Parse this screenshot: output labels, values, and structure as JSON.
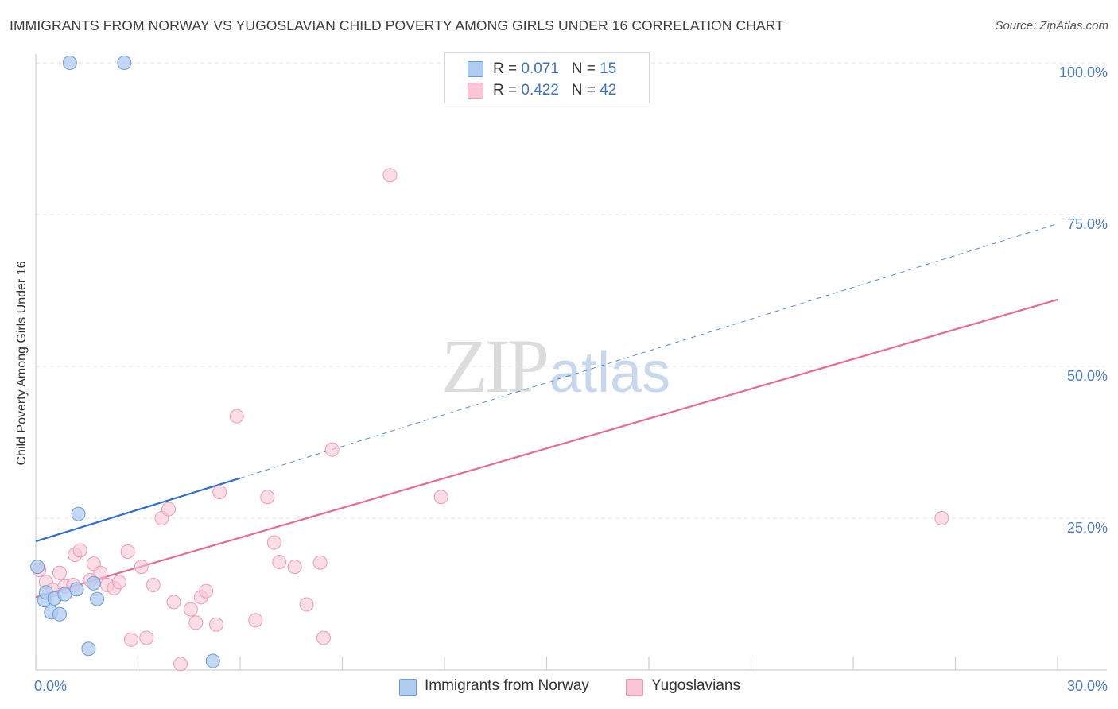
{
  "header": {
    "title": "IMMIGRANTS FROM NORWAY VS YUGOSLAVIAN CHILD POVERTY AMONG GIRLS UNDER 16 CORRELATION CHART",
    "source": "Source: ZipAtlas.com"
  },
  "watermark": {
    "zip": "ZIP",
    "atlas": "atlas"
  },
  "colors": {
    "norway_fill": "#aecbf0",
    "norway_stroke": "#6d9bd6",
    "norway_line": "#2d6fcf",
    "yugo_fill": "#f8c6d5",
    "yugo_stroke": "#ee9ab3",
    "yugo_line": "#e86b96",
    "tick_label": "#4a7bc0",
    "grid": "#e3e3e3"
  },
  "legend": {
    "r_label": "R =",
    "n_label": "N =",
    "rows": [
      {
        "r": "0.071",
        "n": "15"
      },
      {
        "r": "0.422",
        "n": "42"
      }
    ]
  },
  "chart_data": {
    "type": "scatter",
    "title": "IMMIGRANTS FROM NORWAY VS YUGOSLAVIAN CHILD POVERTY AMONG GIRLS UNDER 16 CORRELATION CHART",
    "xlabel": "",
    "ylabel": "Child Poverty Among Girls Under 16",
    "xlim": [
      0,
      30
    ],
    "ylim": [
      0,
      100
    ],
    "x_tick_labels": {
      "min": "0.0%",
      "max": "30.0%"
    },
    "y_ticks": [
      25,
      50,
      75,
      100
    ],
    "y_tick_labels": [
      "25.0%",
      "50.0%",
      "75.0%",
      "100.0%"
    ],
    "grid": true,
    "series": [
      {
        "name": "Immigrants from Norway",
        "r": 0.071,
        "n": 15,
        "points": [
          [
            0.05,
            17.0
          ],
          [
            0.25,
            11.5
          ],
          [
            0.3,
            12.8
          ],
          [
            0.45,
            9.5
          ],
          [
            0.55,
            11.8
          ],
          [
            0.7,
            9.2
          ],
          [
            0.85,
            12.5
          ],
          [
            1.0,
            100.0
          ],
          [
            1.2,
            13.3
          ],
          [
            1.25,
            25.7
          ],
          [
            1.55,
            3.5
          ],
          [
            1.7,
            14.3
          ],
          [
            1.8,
            11.7
          ],
          [
            2.6,
            100.0
          ],
          [
            5.2,
            1.5
          ]
        ],
        "trend": {
          "x0": 0,
          "y0": 21.2,
          "x1": 6.0,
          "y1": 31.6,
          "dashed_to_x": 30,
          "dashed_to_y": 73.5
        }
      },
      {
        "name": "Yugoslavians",
        "r": 0.422,
        "n": 42,
        "points": [
          [
            0.1,
            16.5
          ],
          [
            0.3,
            14.5
          ],
          [
            0.5,
            13.2
          ],
          [
            0.7,
            16.0
          ],
          [
            0.85,
            13.8
          ],
          [
            1.1,
            14.0
          ],
          [
            1.15,
            19.0
          ],
          [
            1.3,
            19.7
          ],
          [
            1.6,
            14.8
          ],
          [
            1.7,
            17.5
          ],
          [
            1.9,
            16.0
          ],
          [
            2.1,
            14.0
          ],
          [
            2.3,
            13.5
          ],
          [
            2.45,
            14.5
          ],
          [
            2.7,
            19.5
          ],
          [
            2.8,
            5.0
          ],
          [
            3.1,
            17.0
          ],
          [
            3.25,
            5.3
          ],
          [
            3.45,
            14.0
          ],
          [
            3.7,
            25.0
          ],
          [
            3.9,
            26.5
          ],
          [
            4.05,
            11.2
          ],
          [
            4.25,
            1.0
          ],
          [
            4.55,
            10.0
          ],
          [
            4.7,
            7.8
          ],
          [
            4.85,
            12.0
          ],
          [
            5.0,
            13.0
          ],
          [
            5.3,
            7.5
          ],
          [
            5.4,
            29.3
          ],
          [
            5.9,
            41.8
          ],
          [
            6.45,
            8.2
          ],
          [
            6.8,
            28.5
          ],
          [
            7.0,
            21.0
          ],
          [
            7.15,
            17.8
          ],
          [
            7.6,
            17.0
          ],
          [
            7.95,
            10.8
          ],
          [
            8.35,
            17.7
          ],
          [
            8.45,
            5.3
          ],
          [
            8.7,
            36.3
          ],
          [
            10.4,
            81.5
          ],
          [
            11.9,
            28.5
          ],
          [
            26.6,
            25.0
          ]
        ],
        "trend": {
          "x0": 0,
          "y0": 12.0,
          "x1": 30,
          "y1": 61.0
        }
      }
    ]
  }
}
